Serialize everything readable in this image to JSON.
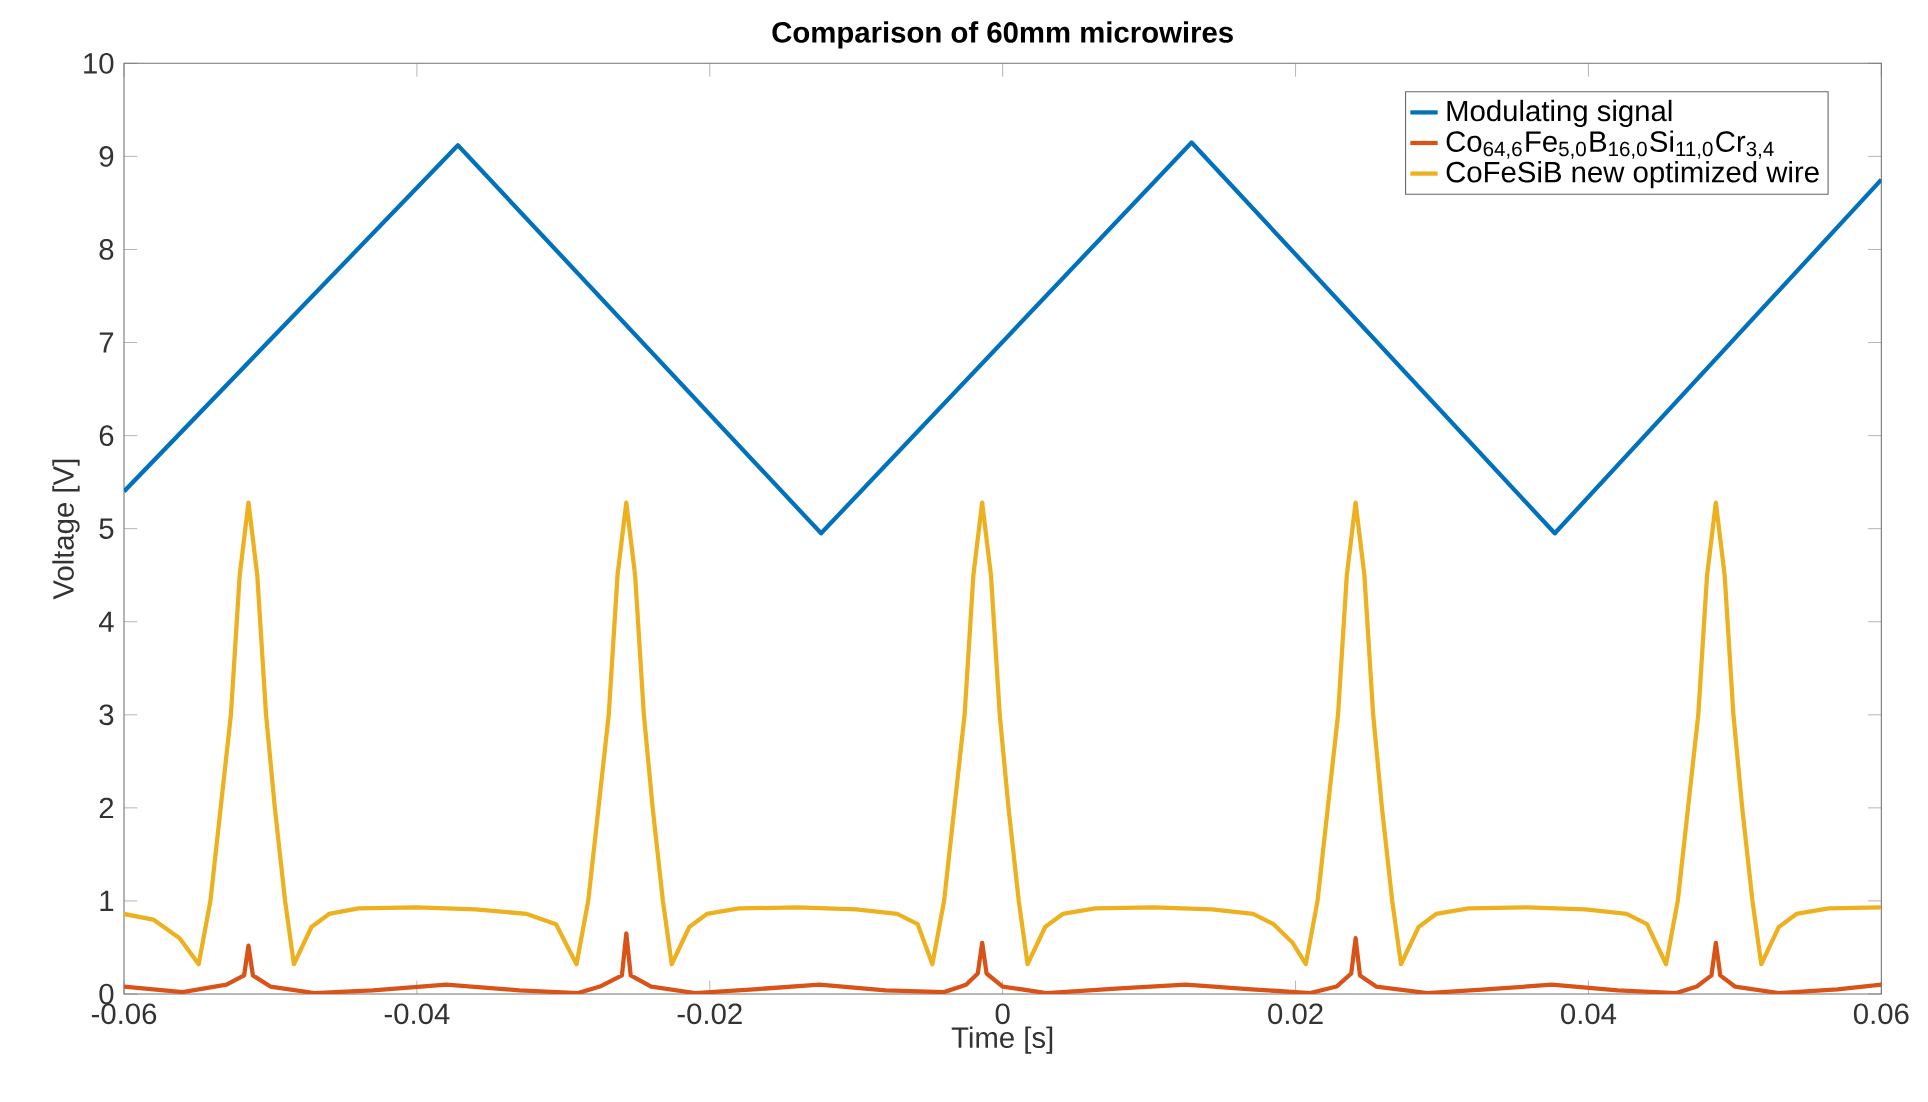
{
  "chart_data": {
    "type": "line",
    "title": "Comparison of 60mm microwires",
    "xlabel": "Time [s]",
    "ylabel": "Voltage [V]",
    "xlim": [
      -0.06,
      0.06
    ],
    "ylim": [
      0,
      10
    ],
    "xticks": [
      -0.06,
      -0.04,
      -0.02,
      0,
      0.02,
      0.04,
      0.06
    ],
    "yticks": [
      0,
      1,
      2,
      3,
      4,
      5,
      6,
      7,
      8,
      9,
      10
    ],
    "grid": false,
    "legend": "top right",
    "marker": "none",
    "line_style": "solid",
    "series": [
      {
        "name": "Modulating signal",
        "color": "#0072bd",
        "x": [
          -0.06,
          -0.0372,
          -0.0124,
          0.0129,
          0.0377,
          0.06
        ],
        "values": [
          5.4,
          9.12,
          4.95,
          9.15,
          4.95,
          8.75
        ]
      },
      {
        "name": "Co$_{64,6}$Fe$_{5,0}$B$_{16,0}$Si$_{11,0}$Cr$_{3,4}$",
        "color": "#d95319",
        "x": [
          -0.06,
          -0.056,
          -0.053,
          -0.0518,
          -0.0515,
          -0.0512,
          -0.05,
          -0.047,
          -0.043,
          -0.038,
          -0.033,
          -0.029,
          -0.0275,
          -0.026,
          -0.0257,
          -0.0254,
          -0.024,
          -0.021,
          -0.017,
          -0.0125,
          -0.008,
          -0.004,
          -0.0025,
          -0.0017,
          -0.0014,
          -0.0011,
          0.0,
          0.003,
          0.008,
          0.0125,
          0.017,
          0.021,
          0.0228,
          0.0238,
          0.0241,
          0.0244,
          0.0255,
          0.029,
          0.033,
          0.0375,
          0.042,
          0.046,
          0.0474,
          0.0484,
          0.0487,
          0.049,
          0.05,
          0.053,
          0.057,
          0.06
        ],
        "values": [
          0.08,
          0.02,
          0.1,
          0.2,
          0.52,
          0.2,
          0.08,
          0.01,
          0.04,
          0.1,
          0.04,
          0.01,
          0.08,
          0.2,
          0.65,
          0.2,
          0.08,
          0.01,
          0.05,
          0.1,
          0.04,
          0.02,
          0.1,
          0.22,
          0.55,
          0.22,
          0.08,
          0.01,
          0.06,
          0.1,
          0.05,
          0.01,
          0.08,
          0.22,
          0.6,
          0.2,
          0.08,
          0.01,
          0.05,
          0.1,
          0.04,
          0.01,
          0.08,
          0.2,
          0.55,
          0.2,
          0.08,
          0.01,
          0.05,
          0.1
        ]
      },
      {
        "name": "CoFeSiB new optimized wire",
        "color": "#edb120",
        "x": [
          -0.06,
          -0.058,
          -0.0562,
          -0.0549,
          -0.0541,
          -0.0534,
          -0.0527,
          -0.0521,
          -0.0515,
          -0.0509,
          -0.0503,
          -0.0497,
          -0.049,
          -0.0484,
          -0.0472,
          -0.046,
          -0.044,
          -0.04,
          -0.036,
          -0.0325,
          -0.0305,
          -0.0291,
          -0.0283,
          -0.0276,
          -0.0269,
          -0.0263,
          -0.0257,
          -0.0251,
          -0.0245,
          -0.0239,
          -0.0232,
          -0.0226,
          -0.0214,
          -0.0202,
          -0.018,
          -0.014,
          -0.01,
          -0.0072,
          -0.0058,
          -0.0048,
          -0.004,
          -0.0033,
          -0.0026,
          -0.002,
          -0.0014,
          -0.0008,
          -0.0002,
          0.0004,
          0.0011,
          0.0017,
          0.0029,
          0.0041,
          0.0063,
          0.0103,
          0.0143,
          0.0171,
          0.0185,
          0.0198,
          0.0207,
          0.0215,
          0.0222,
          0.0229,
          0.0235,
          0.0241,
          0.0247,
          0.0253,
          0.0259,
          0.0266,
          0.0272,
          0.0284,
          0.0296,
          0.0318,
          0.0358,
          0.0398,
          0.0426,
          0.044,
          0.0453,
          0.0461,
          0.0468,
          0.0475,
          0.0481,
          0.0487,
          0.0493,
          0.0499,
          0.0505,
          0.0512,
          0.0518,
          0.053,
          0.0542,
          0.0564,
          0.06
        ],
        "values": [
          0.86,
          0.8,
          0.6,
          0.32,
          1.0,
          2.0,
          3.0,
          4.5,
          5.28,
          4.5,
          3.0,
          2.0,
          1.0,
          0.32,
          0.72,
          0.86,
          0.92,
          0.93,
          0.91,
          0.86,
          0.75,
          0.32,
          1.0,
          2.0,
          3.0,
          4.5,
          5.28,
          4.5,
          3.0,
          2.0,
          1.0,
          0.32,
          0.72,
          0.86,
          0.92,
          0.93,
          0.91,
          0.86,
          0.75,
          0.32,
          1.0,
          2.0,
          3.0,
          4.5,
          5.28,
          4.5,
          3.0,
          2.0,
          1.0,
          0.32,
          0.72,
          0.86,
          0.92,
          0.93,
          0.91,
          0.86,
          0.75,
          0.55,
          0.32,
          1.0,
          2.0,
          3.0,
          4.5,
          5.28,
          4.5,
          3.0,
          2.0,
          1.0,
          0.32,
          0.72,
          0.86,
          0.92,
          0.93,
          0.91,
          0.86,
          0.75,
          0.32,
          1.0,
          2.0,
          3.0,
          4.5,
          5.28,
          4.5,
          3.0,
          2.0,
          1.0,
          0.32,
          0.72,
          0.86,
          0.92,
          0.93
        ]
      }
    ]
  }
}
